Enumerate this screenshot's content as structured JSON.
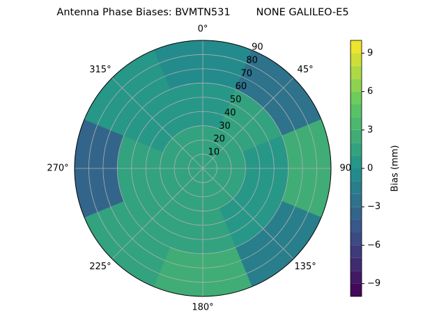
{
  "chart_data": {
    "type": "polar_contour",
    "title": "Antenna Phase Biases: BVMTN531        NONE GALILEO-E5",
    "colorbar_label": "Bias (mm)",
    "theta_ticks": [
      {
        "value": 0,
        "label": "0°"
      },
      {
        "value": 45,
        "label": "45°"
      },
      {
        "value": 90,
        "label": "90°"
      },
      {
        "value": 135,
        "label": "135°"
      },
      {
        "value": 180,
        "label": "180°"
      },
      {
        "value": 225,
        "label": "225°"
      },
      {
        "value": 270,
        "label": "270°"
      },
      {
        "value": 315,
        "label": "315°"
      }
    ],
    "rlim": [
      0,
      90
    ],
    "rticks": [
      10,
      20,
      30,
      40,
      50,
      60,
      70,
      80,
      90
    ],
    "theta_bins": [
      -22.5,
      22.5,
      67.5,
      112.5,
      157.5,
      202.5,
      247.5,
      292.5,
      337.5
    ],
    "r_bins": [
      0,
      30,
      60,
      90
    ],
    "values": [
      [
        1.5,
        1.5,
        1.5,
        1.5,
        1.5,
        1.5,
        1.5,
        1.5
      ],
      [
        0.5,
        1,
        0.5,
        0,
        1,
        1,
        1,
        0.5
      ],
      [
        -1,
        -3,
        2,
        -2,
        2,
        1,
        -4,
        0
      ]
    ],
    "clim": [
      -10,
      10
    ],
    "levels": [
      -10,
      -9,
      -8,
      -7,
      -6,
      -5,
      -4,
      -3,
      -2,
      -1,
      0,
      1,
      2,
      3,
      4,
      5,
      6,
      7,
      8,
      9,
      10
    ],
    "colorbar_ticks": [
      {
        "value": -9,
        "label": "−9"
      },
      {
        "value": -6,
        "label": "−6"
      },
      {
        "value": -3,
        "label": "−3"
      },
      {
        "value": 0,
        "label": "0"
      },
      {
        "value": 3,
        "label": "3"
      },
      {
        "value": 6,
        "label": "6"
      },
      {
        "value": 9,
        "label": "9"
      }
    ],
    "colormap": "viridis",
    "grid": true
  }
}
